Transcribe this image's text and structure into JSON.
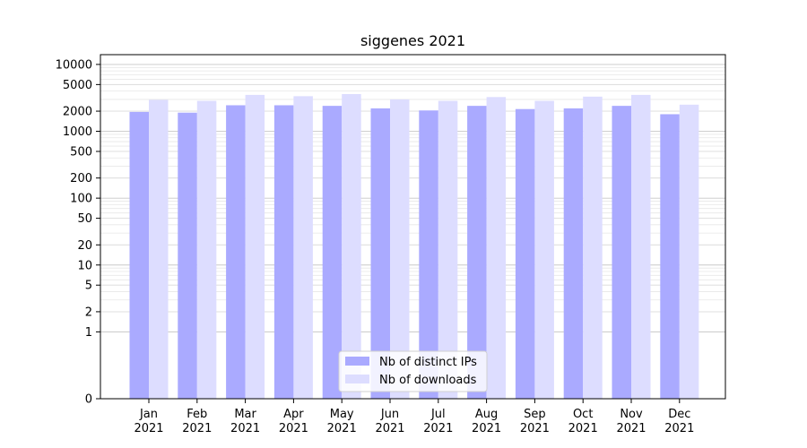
{
  "chart_data": {
    "type": "bar",
    "title": "siggenes 2021",
    "xlabel": "",
    "ylabel": "",
    "yscale": "symlog",
    "ylim": [
      0,
      14000
    ],
    "yticks": [
      0,
      1,
      2,
      5,
      10,
      20,
      50,
      100,
      200,
      500,
      1000,
      2000,
      5000,
      10000
    ],
    "categories": [
      "Jan\n2021",
      "Feb\n2021",
      "Mar\n2021",
      "Apr\n2021",
      "May\n2021",
      "Jun\n2021",
      "Jul\n2021",
      "Aug\n2021",
      "Sep\n2021",
      "Oct\n2021",
      "Nov\n2021",
      "Dec\n2021"
    ],
    "series": [
      {
        "name": "Nb of distinct IPs",
        "color": "#aaaaff",
        "values": [
          1950,
          1900,
          2450,
          2450,
          2400,
          2200,
          2050,
          2400,
          2150,
          2200,
          2400,
          1800
        ]
      },
      {
        "name": "Nb of downloads",
        "color": "#ddddff",
        "values": [
          2950,
          2850,
          3500,
          3350,
          3600,
          3000,
          2850,
          3250,
          2850,
          3300,
          3500,
          2500
        ]
      }
    ],
    "grid": true,
    "legend": "lower-center"
  }
}
